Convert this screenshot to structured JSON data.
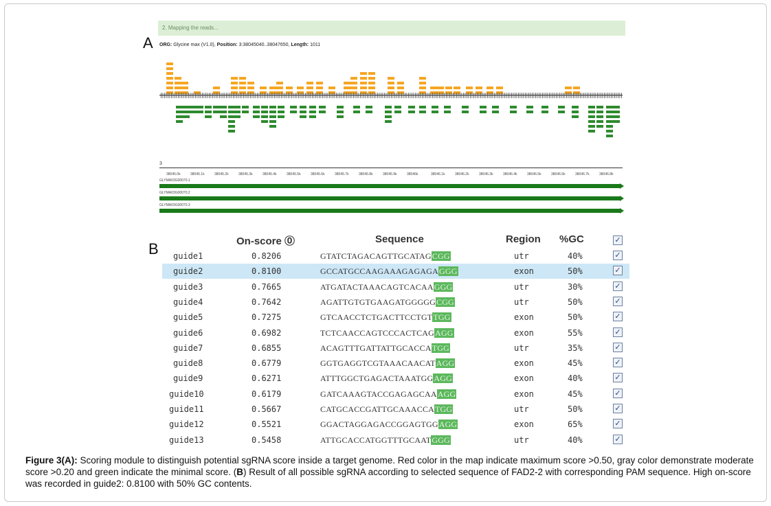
{
  "panel_a": {
    "letter": "A",
    "map_header": "2. Mapping the reads...",
    "org_label": "ORG:",
    "org_value": "Glycine max (V1.0),",
    "position_label": "Position:",
    "position_value": "3:38045040..38047650,",
    "length_label": "Length:",
    "length_value": "1011",
    "track_label": "3",
    "transcripts": [
      "GLYMA03G00070.1",
      "GLYMA03G00070.2",
      "GLYMA03G00070.3"
    ],
    "ruler_ticks": [
      "38045.0k",
      "38045.1k",
      "38045.2k",
      "38045.3k",
      "38045.4k",
      "38045.5k",
      "38045.6k",
      "38045.7k",
      "38045.8k",
      "38045.9k",
      "38046k",
      "38046.1k",
      "38046.2k",
      "38046.3k",
      "38046.4k",
      "38046.5k",
      "38046.6k",
      "38046.7k",
      "38046.8k"
    ],
    "colors": {
      "high": "#f5a623",
      "low": "#2e8b2e",
      "transcript": "#1a7a1a"
    }
  },
  "panel_b": {
    "letter": "B",
    "headers": {
      "onscore": "On-score ⓪",
      "sequence": "Sequence",
      "region": "Region",
      "gc": "%GC"
    },
    "header_check": "✓",
    "highlight_row": 1,
    "rows": [
      {
        "guide": "guide1",
        "score": "0.8206",
        "seq": "GTATCTAGACAGTTGCATAG",
        "pam": "CGG",
        "region": "utr",
        "gc": "40%"
      },
      {
        "guide": "guide2",
        "score": "0.8100",
        "seq": "GCCATGCCAAGAAAGAGAGA",
        "pam": "GGG",
        "region": "exon",
        "gc": "50%"
      },
      {
        "guide": "guide3",
        "score": "0.7665",
        "seq": "ATGATACTAAACAGTCACAA",
        "pam": "GGG",
        "region": "utr",
        "gc": "30%"
      },
      {
        "guide": "guide4",
        "score": "0.7642",
        "seq": "AGATTGTGTGAAGATGGGGG",
        "pam": "CGG",
        "region": "utr",
        "gc": "50%"
      },
      {
        "guide": "guide5",
        "score": "0.7275",
        "seq": "GTCAACCTCTGACTTCCTGT",
        "pam": "TGG",
        "region": "exon",
        "gc": "50%"
      },
      {
        "guide": "guide6",
        "score": "0.6982",
        "seq": "TCTCAACCAGTCCCACTCAG",
        "pam": "AGG",
        "region": "exon",
        "gc": "55%"
      },
      {
        "guide": "guide7",
        "score": "0.6855",
        "seq": "ACAGTTTGATTATTGCACCA",
        "pam": "TGG",
        "region": "utr",
        "gc": "35%"
      },
      {
        "guide": "guide8",
        "score": "0.6779",
        "seq": "GGTGAGGTCGTAAACAACAT",
        "pam": "AGG",
        "region": "exon",
        "gc": "45%"
      },
      {
        "guide": "guide9",
        "score": "0.6271",
        "seq": "ATTTGGCTGAGACTAAATGG",
        "pam": "AGG",
        "region": "exon",
        "gc": "40%"
      },
      {
        "guide": "guide10",
        "score": "0.6179",
        "seq": "GATCAAAGTACCGAGAGCAA",
        "pam": "AGG",
        "region": "exon",
        "gc": "45%"
      },
      {
        "guide": "guide11",
        "score": "0.5667",
        "seq": "CATGCACCGATTGCAAACCA",
        "pam": "TGG",
        "region": "utr",
        "gc": "50%"
      },
      {
        "guide": "guide12",
        "score": "0.5521",
        "seq": "GGACTAGGAGACCGGAGTGG",
        "pam": "AGG",
        "region": "exon",
        "gc": "65%"
      },
      {
        "guide": "guide13",
        "score": "0.5458",
        "seq": "ATTGCACCATGGTTTGCAAT",
        "pam": "GGG",
        "region": "utr",
        "gc": "40%"
      }
    ]
  },
  "caption": {
    "label": "Figure 3(A):",
    "text1": " Scoring module to distinguish potential sgRNA score inside a target genome. Red color in the map indicate maximum score >0.50, gray color demonstrate moderate score >0.20 and green indicate the minimal score. (",
    "b_label": "B",
    "text2": ") Result of all possible sgRNA according to selected sequence of FAD2-2 with corresponding PAM sequence. High on-score was recorded in guide2: 0.8100 with 50% GC contents."
  }
}
